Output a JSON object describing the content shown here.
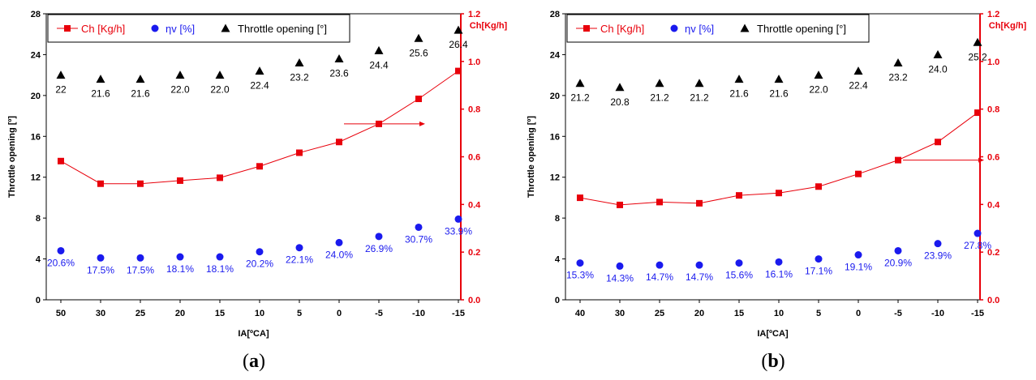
{
  "colors": {
    "ch": "#e8000b",
    "eta": "#1a1aee",
    "throttle": "#000000",
    "leftAxis": "#000000",
    "rightAxis": "#e8000b"
  },
  "chart_data": [
    {
      "panel_label": "a",
      "type": "line",
      "categories": [
        "50",
        "30",
        "25",
        "20",
        "15",
        "10",
        "5",
        "0",
        "-5",
        "-10",
        "-15"
      ],
      "xlabel": "IA[ºCA]",
      "ylabel_left": "Throttle opening [º]",
      "ylabel_right": "Ch[Kg/h]",
      "ylim_left": [
        0,
        28
      ],
      "yticks_left": [
        0,
        4,
        8,
        12,
        16,
        20,
        24,
        28
      ],
      "ylim_right": [
        0,
        1.2
      ],
      "yticks_right": [
        "0.0",
        "0.2",
        "0.4",
        "0.6",
        "0.8",
        "1.0",
        "1.2"
      ],
      "legend_position": "top-left",
      "series": [
        {
          "name": "Ch [Kg/h]",
          "axis": "right",
          "marker": "square-line",
          "values": [
            0.582,
            0.487,
            0.487,
            0.5,
            0.512,
            0.56,
            0.617,
            0.662,
            0.738,
            0.843,
            0.96
          ]
        },
        {
          "name": "ηv [%]",
          "axis": "left",
          "marker": "circle",
          "values": [
            4.8,
            4.1,
            4.1,
            4.2,
            4.2,
            4.7,
            5.1,
            5.6,
            6.2,
            7.1,
            7.9
          ],
          "labels": [
            "20.6%",
            "17.5%",
            "17.5%",
            "18.1%",
            "18.1%",
            "20.2%",
            "22.1%",
            "24.0%",
            "26.9%",
            "30.7%",
            "33.9%"
          ]
        },
        {
          "name": "Throttle opening [°]",
          "axis": "left",
          "marker": "triangle",
          "values": [
            22.0,
            21.6,
            21.6,
            22.0,
            22.0,
            22.4,
            23.2,
            23.6,
            24.4,
            25.6,
            26.4
          ],
          "labels": [
            "22",
            "21.6",
            "21.6",
            "22.0",
            "22.0",
            "22.4",
            "23.2",
            "23.6",
            "24.4",
            "25.6",
            "26.4"
          ]
        }
      ],
      "arrow": {
        "from_index": 7,
        "to_index": 9,
        "value": 0.738
      }
    },
    {
      "panel_label": "b",
      "type": "line",
      "categories": [
        "40",
        "30",
        "25",
        "20",
        "15",
        "10",
        "5",
        "0",
        "-5",
        "-10",
        "-15"
      ],
      "xlabel": "IA[ºCA]",
      "ylabel_left": "Throttle opening [º]",
      "ylabel_right": "Ch[Kg/h]",
      "ylim_left": [
        0,
        28
      ],
      "yticks_left": [
        0,
        4,
        8,
        12,
        16,
        20,
        24,
        28
      ],
      "ylim_right": [
        0,
        1.2
      ],
      "yticks_right": [
        "0.0",
        "0.2",
        "0.4",
        "0.6",
        "0.8",
        "1.0",
        "1.2"
      ],
      "legend_position": "top-left",
      "series": [
        {
          "name": "Ch [Kg/h]",
          "axis": "right",
          "marker": "square-line",
          "values": [
            0.428,
            0.398,
            0.41,
            0.405,
            0.438,
            0.448,
            0.475,
            0.528,
            0.586,
            0.662,
            0.785
          ]
        },
        {
          "name": "ηv [%]",
          "axis": "left",
          "marker": "circle",
          "values": [
            3.6,
            3.3,
            3.4,
            3.4,
            3.6,
            3.7,
            4.0,
            4.4,
            4.8,
            5.5,
            6.5
          ],
          "labels": [
            "15.3%",
            "14.3%",
            "14.7%",
            "14.7%",
            "15.6%",
            "16.1%",
            "17.1%",
            "19.1%",
            "20.9%",
            "23.9%",
            "27.8%"
          ]
        },
        {
          "name": "Throttle opening [°]",
          "axis": "left",
          "marker": "triangle",
          "values": [
            21.2,
            20.8,
            21.2,
            21.2,
            21.6,
            21.6,
            22.0,
            22.4,
            23.2,
            24.0,
            25.2
          ],
          "labels": [
            "21.2",
            "20.8",
            "21.2",
            "21.2",
            "21.6",
            "21.6",
            "22.0",
            "22.4",
            "23.2",
            "24.0",
            "25.2"
          ]
        }
      ],
      "arrow": {
        "from_index": 8,
        "to_index": 10,
        "value": 0.586
      }
    }
  ]
}
